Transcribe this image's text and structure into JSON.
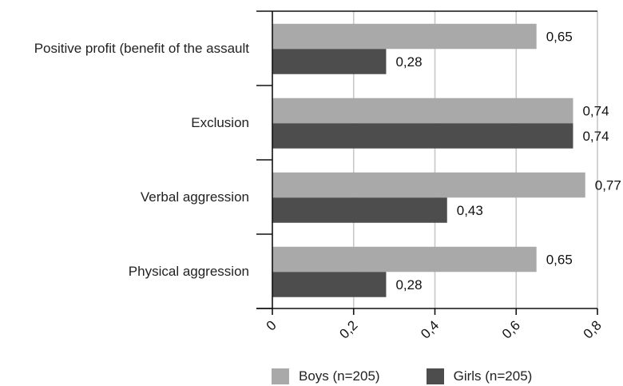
{
  "chart_data": {
    "type": "bar",
    "orientation": "horizontal",
    "categories": [
      "Positive profit (benefit of the assault",
      "Exclusion",
      "Verbal aggression",
      "Physical aggression"
    ],
    "series": [
      {
        "name": "Boys (n=205)",
        "values": [
          0.65,
          0.74,
          0.77,
          0.65
        ],
        "labels": [
          "0,65",
          "0,74",
          "0,77",
          "0,65"
        ],
        "color": "#a9a9a9"
      },
      {
        "name": "Girls (n=205)",
        "values": [
          0.28,
          0.74,
          0.43,
          0.28
        ],
        "labels": [
          "0,28",
          "0,74",
          "0,43",
          "0,28"
        ],
        "color": "#4d4d4d"
      }
    ],
    "xlim": [
      0,
      0.8
    ],
    "xticks": [
      0,
      0.2,
      0.4,
      0.6,
      0.8
    ],
    "xtick_labels": [
      "0",
      "0,2",
      "0,4",
      "0,6",
      "0,8"
    ],
    "grid": "vertical",
    "legend": "bottom"
  }
}
